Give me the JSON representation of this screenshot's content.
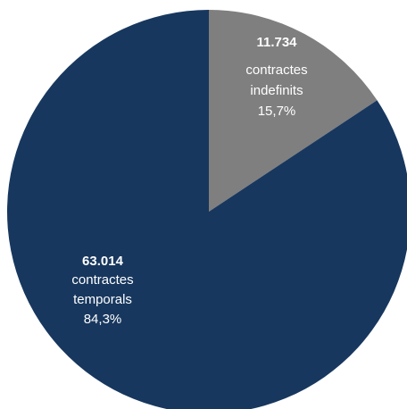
{
  "chart_data": {
    "type": "pie",
    "title": "",
    "start_angle_deg": 0,
    "direction": "clockwise",
    "slices": [
      {
        "label_value": "11.734",
        "label_line1": "contractes",
        "label_line2": "indefinits",
        "label_percent": "15,7%",
        "value": 11734,
        "percent": 15.7,
        "color": "#7f7f7f"
      },
      {
        "label_value": "63.014",
        "label_line1": "contractes",
        "label_line2": "temporals",
        "label_percent": "84,3%",
        "value": 63014,
        "percent": 84.3,
        "color": "#17375e"
      }
    ]
  }
}
